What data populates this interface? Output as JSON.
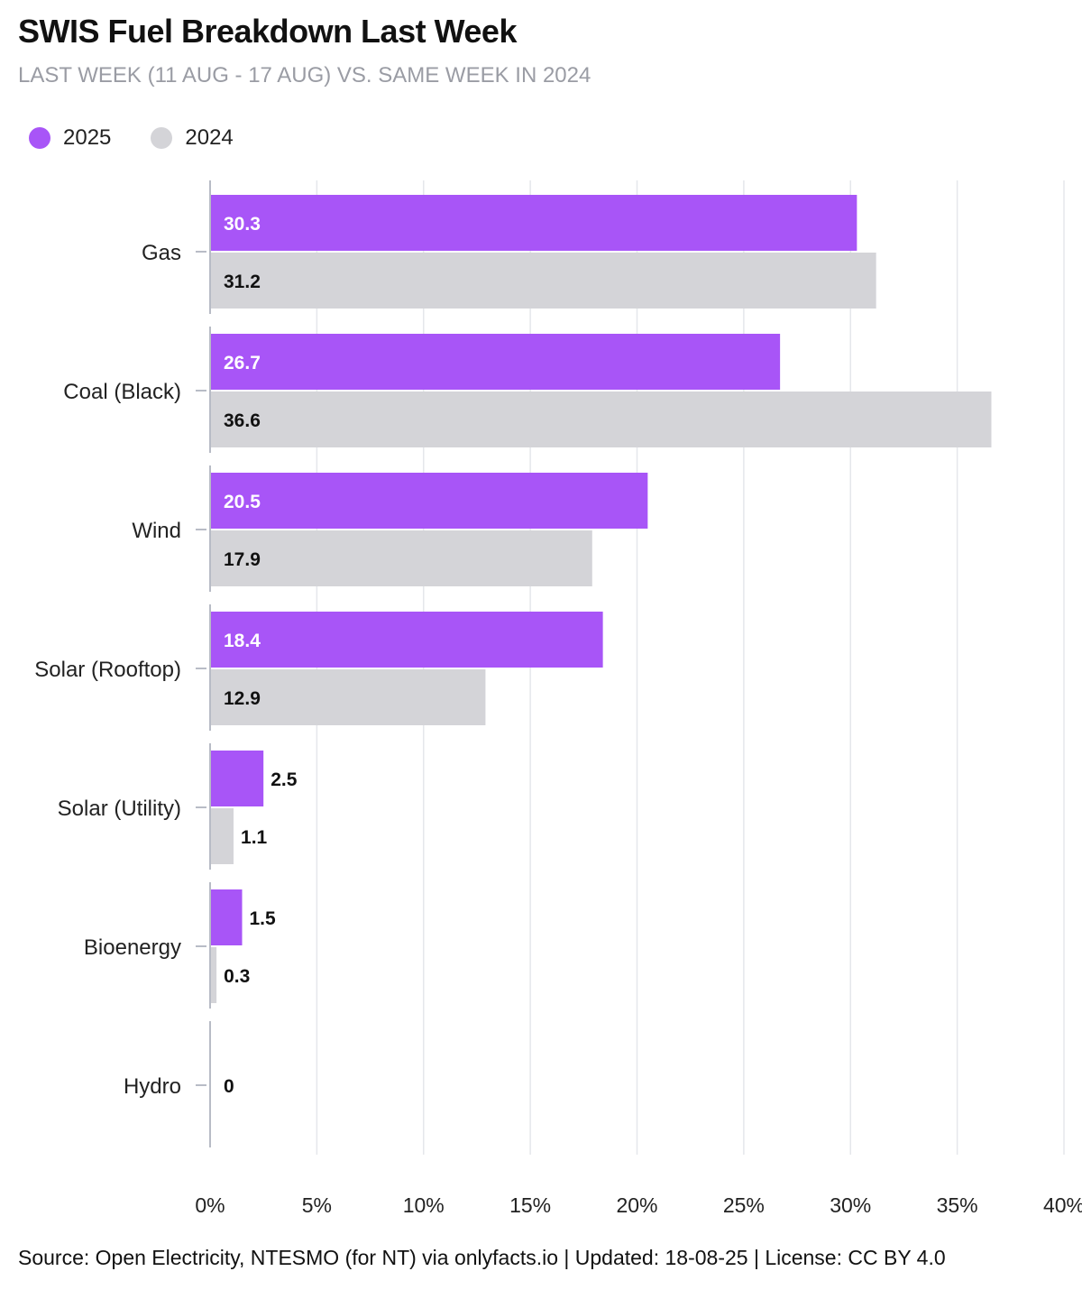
{
  "chart_data": {
    "type": "bar",
    "orientation": "horizontal",
    "title": "SWIS Fuel Breakdown Last Week",
    "subtitle": "LAST WEEK (11 AUG - 17 AUG) VS. SAME WEEK IN 2024",
    "categories": [
      "Gas",
      "Coal (Black)",
      "Wind",
      "Solar (Rooftop)",
      "Solar (Utility)",
      "Bioenergy",
      "Hydro"
    ],
    "series": [
      {
        "name": "2025",
        "color": "#a855f7",
        "values": [
          30.3,
          26.7,
          20.5,
          18.4,
          2.5,
          1.5,
          null
        ]
      },
      {
        "name": "2024",
        "color": "#d4d4d8",
        "values": [
          31.2,
          36.6,
          17.9,
          12.9,
          1.1,
          0.3,
          0
        ]
      }
    ],
    "xlim": [
      0,
      40
    ],
    "xticks": [
      "0%",
      "5%",
      "10%",
      "15%",
      "20%",
      "25%",
      "30%",
      "35%",
      "40%"
    ],
    "grid": true,
    "legend_position": "top-left"
  },
  "footer": {
    "source": "Source: Open Electricity, NTESMO (for NT) via onlyfacts.io | Updated: 18-08-25 | License: CC BY 4.0"
  }
}
